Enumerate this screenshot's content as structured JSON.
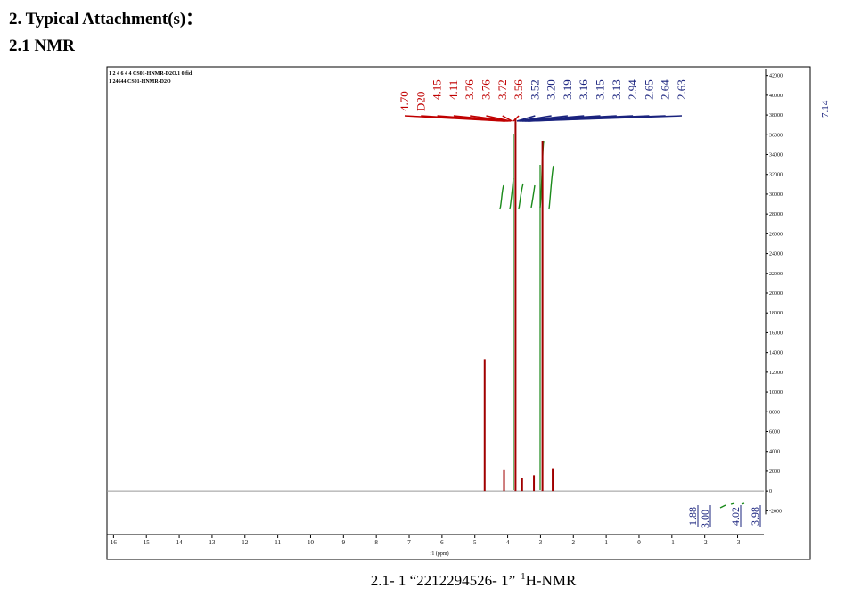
{
  "heading": "2. Typical Attachment(s)：",
  "subheading": "2.1   NMR",
  "chart_data": {
    "type": "spectrum",
    "file_lines": [
      "1 2 4 6 4 4 CS01-HNMR-D2O.1 0.fid",
      "1 24644 CS01-HNMR-D2O"
    ],
    "x_label": "f1  (ppm)",
    "x": [
      4.7,
      4.11,
      3.76,
      3.56,
      3.2,
      2.94,
      2.63
    ],
    "values": [
      13300,
      2100,
      37700,
      1300,
      1600,
      35400,
      2300
    ],
    "color": "#a00000",
    "xlim": [
      16.2,
      -3.8
    ],
    "xticks": [
      16,
      15,
      14,
      13,
      12,
      11,
      10,
      9,
      8,
      7,
      6,
      5,
      4,
      3,
      2,
      1,
      0,
      -1,
      -2,
      -3
    ],
    "ylim": [
      -4400,
      42600
    ],
    "yticks": [
      -2000,
      0,
      2000,
      4000,
      6000,
      8000,
      10000,
      12000,
      14000,
      16000,
      18000,
      20000,
      22000,
      24000,
      26000,
      28000,
      30000,
      32000,
      34000,
      36000,
      38000,
      40000,
      42000
    ],
    "peak_labels": [
      "4.70",
      "D20",
      "4.15",
      "4.11",
      "3.76",
      "3.76",
      "3.72",
      "3.56",
      "3.52",
      "3.20",
      "3.19",
      "3.16",
      "3.15",
      "3.13",
      "2.94",
      "2.65",
      "2.64",
      "2.63"
    ],
    "integrals": [
      "1.88",
      "3.00",
      "4.02",
      "3.98"
    ],
    "side_label": "7.14"
  },
  "caption": [
    "2.1- 1 “2212294526- 1”",
    "1",
    "H-NMR"
  ]
}
